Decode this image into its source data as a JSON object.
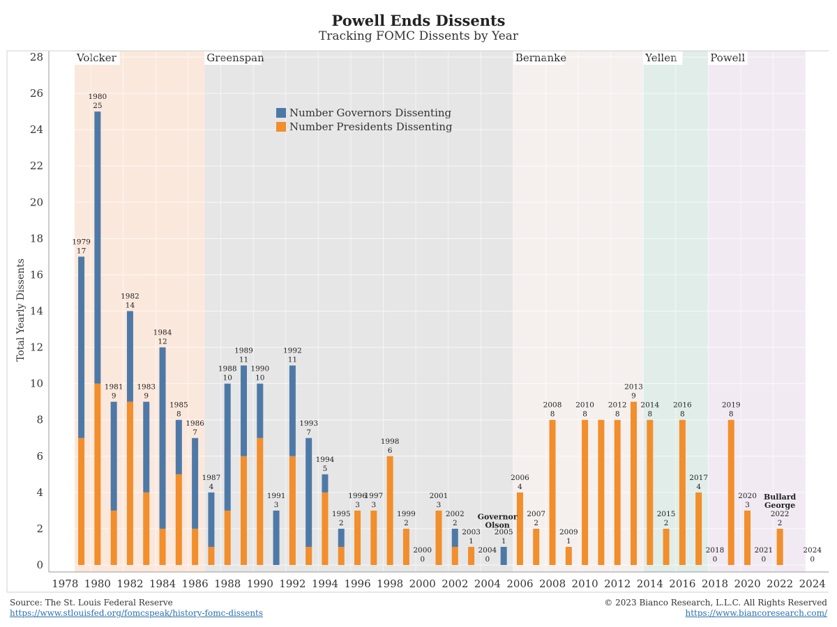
{
  "title": "Powell Ends Dissents",
  "subtitle": "Tracking FOMC Dissents by Year",
  "footer": {
    "source": "Source: The St. Louis Federal Reserve",
    "source_url": "https://www.stlouisfed.org/fomcspeak/history-fomc-dissents",
    "copyright": "© 2023 Bianco Research, L.L.C. All Rights Reserved",
    "copyright_url": "https://www.biancoresearch.com/"
  },
  "colors": {
    "governors": "#4e79a7",
    "presidents": "#f28e2b",
    "volcker": "#fbe8dc",
    "greenspan": "#e6e6e6",
    "bernanke": "#f5f0ee",
    "yellen": "#e0ede8",
    "powell": "#f1eaf3"
  },
  "chart_data": {
    "type": "bar",
    "stacked": true,
    "ylabel": "Total Yearly Dissents",
    "xlabel": "",
    "ylim": [
      0,
      28
    ],
    "yticks": [
      0,
      2,
      4,
      6,
      8,
      10,
      12,
      14,
      16,
      18,
      20,
      22,
      24,
      26,
      28
    ],
    "xlim": [
      1977,
      2025
    ],
    "xticks": [
      1978,
      1980,
      1982,
      1984,
      1986,
      1988,
      1990,
      1992,
      1994,
      1996,
      1998,
      2000,
      2002,
      2004,
      2006,
      2008,
      2010,
      2012,
      2014,
      2016,
      2018,
      2020,
      2022,
      2024
    ],
    "legend_position": "top-center",
    "series": [
      {
        "name": "Number Governors Dissenting",
        "color_key": "governors"
      },
      {
        "name": "Number Presidents Dissenting",
        "color_key": "presidents"
      }
    ],
    "eras": [
      {
        "name": "Volcker",
        "start": 1979,
        "end": 1987,
        "color_key": "volcker"
      },
      {
        "name": "Greenspan",
        "start": 1987,
        "end": 2006,
        "color_key": "greenspan"
      },
      {
        "name": "Bernanke",
        "start": 2006,
        "end": 2014,
        "color_key": "bernanke"
      },
      {
        "name": "Yellen",
        "start": 2014,
        "end": 2018,
        "color_key": "yellen"
      },
      {
        "name": "Powell",
        "start": 2018,
        "end": 2024,
        "color_key": "powell"
      }
    ],
    "data": [
      {
        "year": 1979,
        "governors": 10,
        "presidents": 7,
        "total": 17
      },
      {
        "year": 1980,
        "governors": 15,
        "presidents": 10,
        "total": 25
      },
      {
        "year": 1981,
        "governors": 6,
        "presidents": 3,
        "total": 9
      },
      {
        "year": 1982,
        "governors": 5,
        "presidents": 9,
        "total": 14
      },
      {
        "year": 1983,
        "governors": 5,
        "presidents": 4,
        "total": 9
      },
      {
        "year": 1984,
        "governors": 10,
        "presidents": 2,
        "total": 12
      },
      {
        "year": 1985,
        "governors": 3,
        "presidents": 5,
        "total": 8
      },
      {
        "year": 1986,
        "governors": 5,
        "presidents": 2,
        "total": 7
      },
      {
        "year": 1987,
        "governors": 3,
        "presidents": 1,
        "total": 4
      },
      {
        "year": 1988,
        "governors": 7,
        "presidents": 3,
        "total": 10
      },
      {
        "year": 1989,
        "governors": 5,
        "presidents": 6,
        "total": 11
      },
      {
        "year": 1990,
        "governors": 3,
        "presidents": 7,
        "total": 10
      },
      {
        "year": 1991,
        "governors": 3,
        "presidents": 0,
        "total": 3
      },
      {
        "year": 1992,
        "governors": 5,
        "presidents": 6,
        "total": 11
      },
      {
        "year": 1993,
        "governors": 6,
        "presidents": 1,
        "total": 7
      },
      {
        "year": 1994,
        "governors": 1,
        "presidents": 4,
        "total": 5
      },
      {
        "year": 1995,
        "governors": 1,
        "presidents": 1,
        "total": 2
      },
      {
        "year": 1996,
        "governors": 0,
        "presidents": 3,
        "total": 3
      },
      {
        "year": 1997,
        "governors": 0,
        "presidents": 3,
        "total": 3
      },
      {
        "year": 1998,
        "governors": 0,
        "presidents": 6,
        "total": 6
      },
      {
        "year": 1999,
        "governors": 0,
        "presidents": 2,
        "total": 2
      },
      {
        "year": 2000,
        "governors": 0,
        "presidents": 0,
        "total": 0
      },
      {
        "year": 2001,
        "governors": 0,
        "presidents": 3,
        "total": 3
      },
      {
        "year": 2002,
        "governors": 1,
        "presidents": 1,
        "total": 2
      },
      {
        "year": 2003,
        "governors": 0,
        "presidents": 1,
        "total": 1
      },
      {
        "year": 2004,
        "governors": 0,
        "presidents": 0,
        "total": 0
      },
      {
        "year": 2005,
        "governors": 1,
        "presidents": 0,
        "total": 1
      },
      {
        "year": 2006,
        "governors": 0,
        "presidents": 4,
        "total": 4
      },
      {
        "year": 2007,
        "governors": 0,
        "presidents": 2,
        "total": 2
      },
      {
        "year": 2008,
        "governors": 0,
        "presidents": 8,
        "total": 8
      },
      {
        "year": 2009,
        "governors": 0,
        "presidents": 1,
        "total": 1
      },
      {
        "year": 2010,
        "governors": 0,
        "presidents": 8,
        "total": 8
      },
      {
        "year": 2011,
        "governors": 0,
        "presidents": 8,
        "total": 8,
        "label": false
      },
      {
        "year": 2012,
        "governors": 0,
        "presidents": 8,
        "total": 8
      },
      {
        "year": 2013,
        "governors": 0,
        "presidents": 9,
        "total": 9
      },
      {
        "year": 2014,
        "governors": 0,
        "presidents": 8,
        "total": 8
      },
      {
        "year": 2015,
        "governors": 0,
        "presidents": 2,
        "total": 2
      },
      {
        "year": 2016,
        "governors": 0,
        "presidents": 8,
        "total": 8
      },
      {
        "year": 2017,
        "governors": 0,
        "presidents": 4,
        "total": 4
      },
      {
        "year": 2018,
        "governors": 0,
        "presidents": 0,
        "total": 0
      },
      {
        "year": 2019,
        "governors": 0,
        "presidents": 8,
        "total": 8
      },
      {
        "year": 2020,
        "governors": 0,
        "presidents": 3,
        "total": 3
      },
      {
        "year": 2021,
        "governors": 0,
        "presidents": 0,
        "total": 0
      },
      {
        "year": 2022,
        "governors": 0,
        "presidents": 2,
        "total": 2
      },
      {
        "year": 2024,
        "governors": 0,
        "presidents": 0,
        "total": 0
      }
    ],
    "annotations": [
      {
        "text": [
          "Governor",
          "Olson"
        ],
        "year": 2005,
        "value": 2.2
      },
      {
        "text": [
          "Bullard",
          "George"
        ],
        "year": 2022,
        "value": 3.3
      }
    ]
  }
}
